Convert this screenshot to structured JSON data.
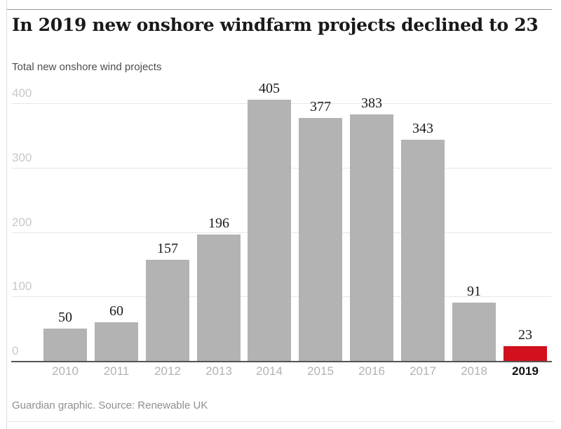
{
  "header": {
    "title": "In 2019 new onshore windfarm projects declined to 23",
    "subtitle": "Total new onshore wind projects"
  },
  "chart_data": {
    "type": "bar",
    "title": "In 2019 new onshore windfarm projects declined to 23",
    "subtitle": "Total new onshore wind projects",
    "categories": [
      "2010",
      "2011",
      "2012",
      "2013",
      "2014",
      "2015",
      "2016",
      "2017",
      "2018",
      "2019"
    ],
    "values": [
      50,
      60,
      157,
      196,
      405,
      377,
      383,
      343,
      91,
      23
    ],
    "xlabel": "",
    "ylabel": "Total new onshore wind projects",
    "ylim": [
      0,
      400
    ],
    "yticks": [
      0,
      100,
      200,
      300,
      400
    ],
    "grid": true,
    "legend": "none",
    "value_labels_shown": true,
    "bar_color": "#b3b3b3",
    "highlight_color": "#d2101e",
    "highlight_category": "2019",
    "axis_line_color": "#545454",
    "gridline_color": "#e7e7e7"
  },
  "footer": {
    "source": "Guardian graphic. Source: Renewable UK"
  }
}
